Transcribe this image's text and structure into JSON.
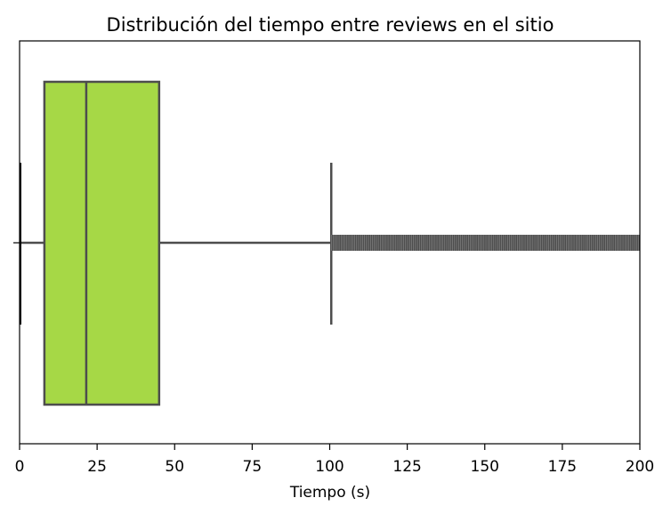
{
  "chart_data": {
    "type": "boxplot",
    "title": "Distribución del tiempo entre reviews en el sitio",
    "xlabel": "Tiempo (s)",
    "ylabel": "",
    "xlim": [
      0,
      200
    ],
    "xticks": [
      "0",
      "25",
      "50",
      "75",
      "100",
      "125",
      "150",
      "175",
      "200"
    ],
    "grid": false,
    "legend": "none",
    "box": {
      "whisker_low": 0,
      "q1": 8,
      "median": 21.5,
      "q3": 45,
      "whisker_high": 100.5,
      "outliers_range": [
        100.5,
        200
      ]
    },
    "colors": {
      "box_fill": "#a6d846",
      "line": "#4d4d4d"
    }
  }
}
